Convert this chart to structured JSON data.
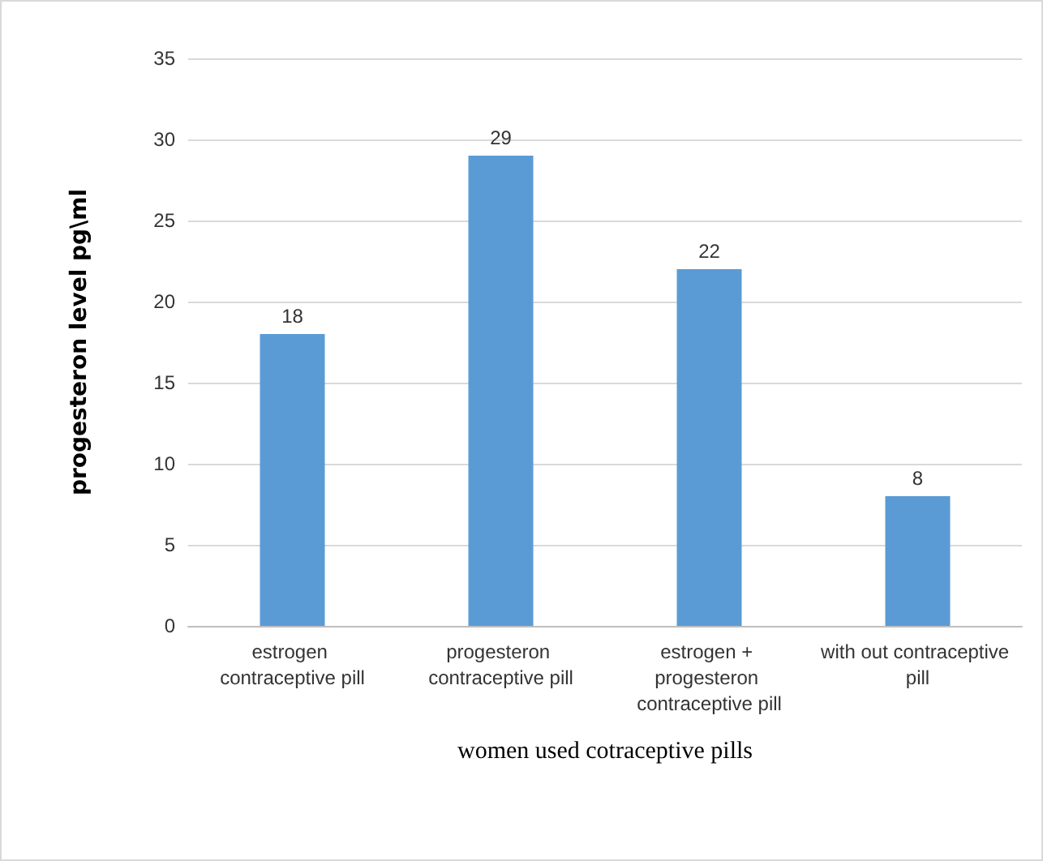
{
  "chart_data": {
    "type": "bar",
    "xlabel": "women used cotraceptive pills",
    "ylabel": "progesteron level pg\\ml",
    "categories": [
      "estrogen contraceptive pill",
      "progesteron contraceptive pill",
      "estrogen + progesteron contraceptive pill",
      "with out contraceptive pill"
    ],
    "values": [
      18,
      29,
      22,
      8
    ],
    "color": "#5b9bd5",
    "ylim": [
      0,
      35
    ],
    "yticks": [
      0,
      5,
      10,
      15,
      20,
      25,
      30,
      35
    ],
    "grid": "y",
    "data_labels": true
  }
}
